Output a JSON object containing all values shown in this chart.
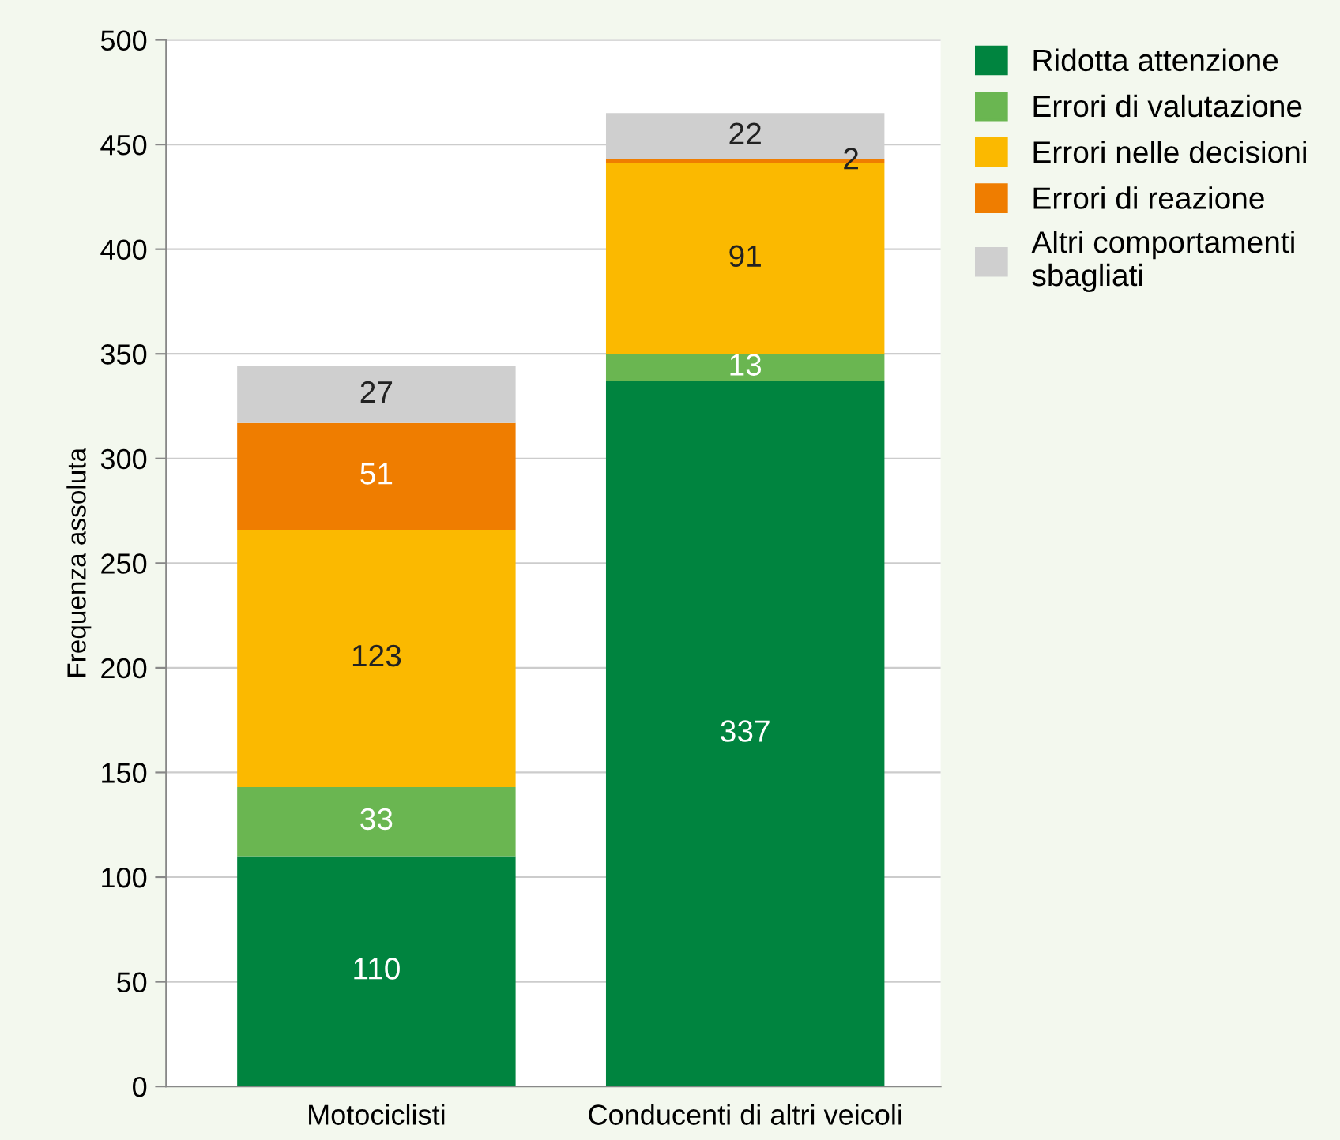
{
  "chart_data": {
    "type": "bar",
    "stacked": true,
    "ylabel": "Frequenza assoluta",
    "categories": [
      "Motociclisti",
      "Conducenti di altri veicoli"
    ],
    "series": [
      {
        "name": "Ridotta attenzione",
        "color": "#00843f",
        "values": [
          110,
          337
        ]
      },
      {
        "name": "Errori di valutazione",
        "color": "#6ab651",
        "values": [
          33,
          13
        ]
      },
      {
        "name": "Errori nelle decisioni",
        "color": "#fbb900",
        "values": [
          123,
          91
        ]
      },
      {
        "name": "Errori di reazione",
        "color": "#ef7d00",
        "values": [
          51,
          2
        ]
      },
      {
        "name": "Altri comportamenti\nsbagliati",
        "color": "#cfcfcf",
        "values": [
          27,
          22
        ]
      }
    ],
    "ylim": [
      0,
      500
    ],
    "yticks": [
      0,
      50,
      100,
      150,
      200,
      250,
      300,
      350,
      400,
      450,
      500
    ],
    "grid": "y",
    "legend": "top right",
    "data_labels": true
  }
}
